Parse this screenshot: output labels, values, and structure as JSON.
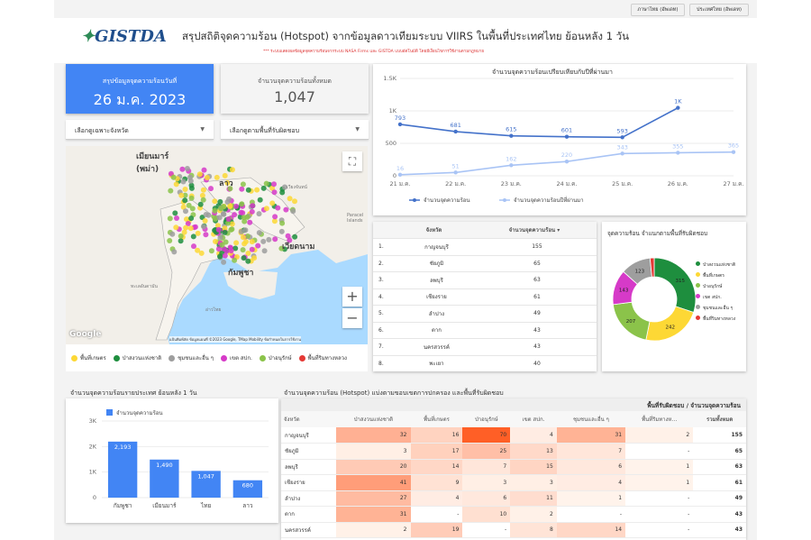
{
  "top_buttons": [
    "ภาษาไทย (อัพเดท)",
    "ประเทศไทย (อัพเดท)"
  ],
  "header": {
    "logo": "GISTDA",
    "title": "สรุปสถิติจุดความร้อน (Hotspot) จากข้อมูลดาวเทียมระบบ VIIRS  ในพื้นที่ประเทศไทย ย้อนหลัง 1 วัน",
    "subtitle": "*** ระบบแสดงผลข้อมูลจุดความร้อนจากระบบ NASA Firms และ GISTDA แบบอัตโนมัติ โดยมีเงื่อนไขการใช้งานตามกฎหมาย"
  },
  "kpi": {
    "today_label": "สรุปข้อมูลจุดความร้อนวันที่",
    "today_value": "26 ม.ค. 2023",
    "total_label": "จำนวนจุดความร้อนทั้งหมด",
    "total_value": "1,047"
  },
  "filters": {
    "province": "เลือกดูเฉพาะจังหวัด",
    "landuse": "เลือกดูตามพื้นที่รับผิดชอบ"
  },
  "map": {
    "labels": {
      "myanmar": "เมียนมาร์\n(พม่า)",
      "laos": "ลาว",
      "vientiane": "เวียงจันทน์",
      "vietnam": "เวียดนาม",
      "cambodia": "กัมพูชา",
      "gulf": "อ่าวไทย",
      "andaman": "ทะเลอันดามัน",
      "paracel": "Paracel\nIslands"
    },
    "google": "Google",
    "attribution": "แป้นพิมพ์ลัด  ข้อมูลแผนที่ ©2023 Google, TMap Mobility  ข้อกำหนดในการใช้งาน",
    "fullscreen_icon": "⛶",
    "zoom_in": "+",
    "zoom_out": "−"
  },
  "map_legend": [
    {
      "label": "พื้นที่เกษตร",
      "color": "#fdd835"
    },
    {
      "label": "ป่าสงวนแห่งชาติ",
      "color": "#1e8e3e"
    },
    {
      "label": "ชุมชนและอื่น ๆ",
      "color": "#9e9e9e"
    },
    {
      "label": "เขต สปก.",
      "color": "#d63ac8"
    },
    {
      "label": "ป่าอนุรักษ์",
      "color": "#8bc34a"
    },
    {
      "label": "พื้นที่ริมทางหลวง",
      "color": "#e53935"
    }
  ],
  "line_chart": {
    "title": "จำนวนจุดความร้อนเปรียบเทียบกับปีที่ผ่านมา",
    "chart_data": {
      "type": "line",
      "x": [
        "21 ม.ค.",
        "22 ม.ค.",
        "23 ม.ค.",
        "24 ม.ค.",
        "25 ม.ค.",
        "26 ม.ค.",
        "27 ม.ค."
      ],
      "yticks": [
        "0",
        "500",
        "1K",
        "1.5K"
      ],
      "ylim": [
        0,
        1500
      ],
      "series": [
        {
          "name": "จำนวนจุดความร้อน",
          "color": "#4472ca",
          "values": [
            793,
            681,
            615,
            601,
            593,
            1047,
            null
          ],
          "labels": [
            "793",
            "681",
            "615",
            "601",
            "593",
            "1K",
            ""
          ]
        },
        {
          "name": "จำนวนจุดความร้อนปีที่ผ่านมา",
          "color": "#a9c4f5",
          "values": [
            16,
            51,
            162,
            220,
            343,
            355,
            365
          ],
          "labels": [
            "16",
            "51",
            "162",
            "220",
            "343",
            "355",
            "365"
          ]
        }
      ]
    }
  },
  "rank_table": {
    "header_province": "จังหวัด",
    "header_count": "จำนวนจุดความร้อน",
    "sort_icon": "▾",
    "rows": [
      {
        "rank": "1.",
        "province": "กาญจนบุรี",
        "count": "155"
      },
      {
        "rank": "2.",
        "province": "ชัยภูมิ",
        "count": "65"
      },
      {
        "rank": "3.",
        "province": "ลพบุรี",
        "count": "63"
      },
      {
        "rank": "4.",
        "province": "เชียงราย",
        "count": "61"
      },
      {
        "rank": "5.",
        "province": "ลำปาง",
        "count": "49"
      },
      {
        "rank": "6.",
        "province": "ตาก",
        "count": "43"
      },
      {
        "rank": "7.",
        "province": "นครสวรรค์",
        "count": "43"
      },
      {
        "rank": "8.",
        "province": "พะเยา",
        "count": "40"
      }
    ]
  },
  "donut": {
    "title": "จุดความร้อน จำแนกตามพื้นที่รับผิดชอบ",
    "chart_data": {
      "type": "pie",
      "slices": [
        {
          "label": "ป่าสงวนแห่งชาติ",
          "value": 315,
          "color": "#1e8e3e"
        },
        {
          "label": "พื้นที่เกษตร",
          "value": 242,
          "color": "#fdd835"
        },
        {
          "label": "ป่าอนุรักษ์",
          "value": 207,
          "color": "#8bc34a"
        },
        {
          "label": "เขต สปก.",
          "value": 143,
          "color": "#d63ac8"
        },
        {
          "label": "ชุมชนและอื่น ๆ",
          "value": 123,
          "color": "#9e9e9e"
        },
        {
          "label": "พื้นที่ริมทางหลวง",
          "value": 17,
          "color": "#e53935"
        }
      ]
    }
  },
  "bar_chart": {
    "title": "จำนวนจุดความร้อนรายประเทศ ย้อนหลัง 1 วัน",
    "chart_data": {
      "type": "bar",
      "series_name": "จำนวนจุดความร้อน",
      "categories": [
        "กัมพูชา",
        "เมียนมาร์",
        "ไทย",
        "ลาว"
      ],
      "values": [
        2193,
        1490,
        1047,
        680
      ],
      "labels": [
        "2,193",
        "1,490",
        "1,047",
        "680"
      ],
      "yticks": [
        "0",
        "1K",
        "2K",
        "3K"
      ],
      "ylim": [
        0,
        3000
      ],
      "color": "#4285f4"
    }
  },
  "heat_table": {
    "title": "จำนวนจุดความร้อน (Hotspot) แบ่งตามขอบเขตการปกครอง และพื้นที่รับผิดชอบ",
    "group_header": "พื้นที่รับผิดชอบ / จำนวนจุดความร้อน",
    "columns": [
      "จังหวัด",
      "ป่าสงวนแห่งชาติ",
      "พื้นที่เกษตร",
      "ป่าอนุรักษ์",
      "เขต สปก.",
      "ชุมชนและอื่น ๆ",
      "พื้นที่ริมทางห...",
      "รวมทั้งหมด"
    ],
    "rows": [
      {
        "province": "กาญจนบุรี",
        "cells": [
          "32",
          "16",
          "70",
          "4",
          "31",
          "2"
        ],
        "total": "155"
      },
      {
        "province": "ชัยภูมิ",
        "cells": [
          "3",
          "17",
          "25",
          "13",
          "7",
          "-"
        ],
        "total": "65"
      },
      {
        "province": "ลพบุรี",
        "cells": [
          "20",
          "14",
          "7",
          "15",
          "6",
          "1"
        ],
        "total": "63"
      },
      {
        "province": "เชียงราย",
        "cells": [
          "41",
          "9",
          "3",
          "3",
          "4",
          "1"
        ],
        "total": "61"
      },
      {
        "province": "ลำปาง",
        "cells": [
          "27",
          "4",
          "6",
          "11",
          "1",
          "-"
        ],
        "total": "49"
      },
      {
        "province": "ตาก",
        "cells": [
          "31",
          "-",
          "10",
          "2",
          "-",
          "-"
        ],
        "total": "43"
      },
      {
        "province": "นครสวรรค์",
        "cells": [
          "2",
          "19",
          "-",
          "8",
          "14",
          "-"
        ],
        "total": "43"
      }
    ]
  }
}
